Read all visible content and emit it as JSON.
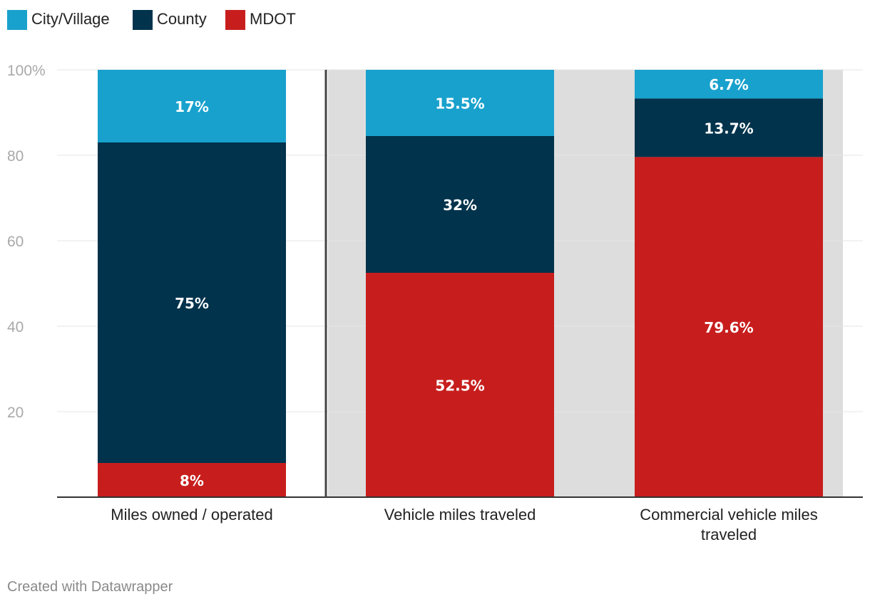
{
  "chart_data": {
    "type": "bar",
    "stacked": true,
    "categories": [
      "Miles owned / operated",
      "Vehicle miles traveled",
      "Commercial vehicle miles traveled"
    ],
    "category_label_lines": [
      [
        "Miles owned / operated"
      ],
      [
        "Vehicle miles traveled"
      ],
      [
        "Commercial vehicle miles",
        "traveled"
      ]
    ],
    "series": [
      {
        "name": "City/Village",
        "color": "#18a1cd",
        "values": [
          17,
          15.5,
          6.7
        ],
        "labels": [
          "17%",
          "15.5%",
          "6.7%"
        ]
      },
      {
        "name": "County",
        "color": "#01334c",
        "values": [
          75,
          32,
          13.7
        ],
        "labels": [
          "75%",
          "32%",
          "13.7%"
        ]
      },
      {
        "name": "MDOT",
        "color": "#c71e1d",
        "values": [
          8,
          52.5,
          79.6
        ],
        "labels": [
          "8%",
          "52.5%",
          "79.6%"
        ]
      }
    ],
    "stack_order": [
      "MDOT",
      "County",
      "City/Village"
    ],
    "highlighted_categories": [
      "Vehicle miles traveled",
      "Commercial vehicle miles traveled"
    ],
    "highlight_color": "#dddddd",
    "ylim": [
      0,
      100
    ],
    "yticks": [
      20,
      40,
      60,
      80,
      100
    ],
    "ytick_labels": [
      "20",
      "40",
      "60",
      "80",
      "100%"
    ],
    "grid": true,
    "legend": "top-left",
    "title": "",
    "xlabel": "",
    "ylabel": ""
  },
  "footer": {
    "credit": "Created with Datawrapper"
  }
}
